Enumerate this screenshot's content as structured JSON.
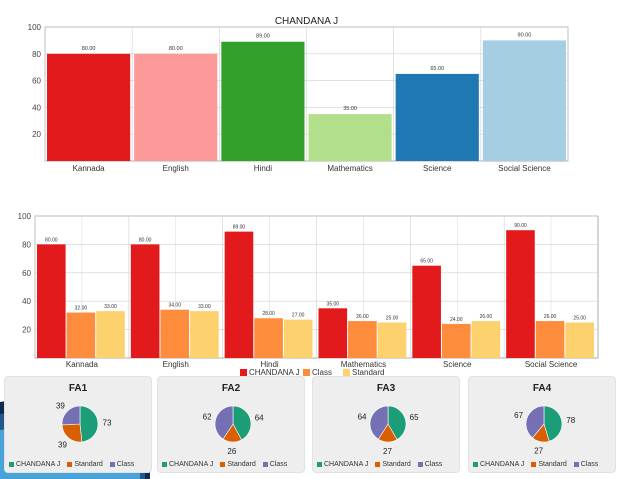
{
  "colors": {
    "red": "#e31a1c",
    "class_orange": "#fd8d3c",
    "standard_yellow": "#fdd26e",
    "pie_green": "#1b9e77",
    "pie_orange": "#d95f02",
    "pie_purple": "#7570b3",
    "grid": "#d0d0d0",
    "card": "#eeeeee"
  },
  "chart_data": [
    {
      "type": "bar",
      "title": "CHANDANA J",
      "categories": [
        "Kannada",
        "English",
        "Hindi",
        "Mathematics",
        "Science",
        "Social Science"
      ],
      "values": [
        80,
        80,
        89,
        35,
        65,
        90
      ],
      "value_labels": [
        "80.00",
        "80.00",
        "89.00",
        "35.00",
        "65.00",
        "90.00"
      ],
      "bar_colors": [
        "#e31a1c",
        "#fb9a99",
        "#33a02c",
        "#b2df8a",
        "#1f78b4",
        "#a6cee3"
      ],
      "yticks": [
        20,
        40,
        60,
        80,
        100
      ],
      "ylim": [
        0,
        100
      ],
      "grid": true
    },
    {
      "type": "bar",
      "categories": [
        "Kannada",
        "English",
        "Hindi",
        "Mathematics",
        "Science",
        "Social Science"
      ],
      "series": [
        {
          "name": "CHANDANA J",
          "values": [
            80,
            80,
            89,
            35,
            65,
            90
          ],
          "labels": [
            "80.00",
            "80.00",
            "89.00",
            "35.00",
            "65.00",
            "90.00"
          ]
        },
        {
          "name": "Class",
          "values": [
            32,
            34,
            28,
            26,
            24,
            26
          ],
          "labels": [
            "32.00",
            "34.00",
            "28.00",
            "26.00",
            "24.00",
            "26.00"
          ]
        },
        {
          "name": "Standard",
          "values": [
            33,
            33,
            27,
            25,
            26,
            25
          ],
          "labels": [
            "33.00",
            "33.00",
            "27.00",
            "25.00",
            "26.00",
            "25.00"
          ]
        }
      ],
      "yticks": [
        20,
        40,
        60,
        80,
        100
      ],
      "ylim": [
        0,
        100
      ],
      "grid": true,
      "legend": "bottom"
    },
    {
      "type": "pie",
      "title": "FA1",
      "slices": [
        {
          "name": "CHANDANA J",
          "value": 73
        },
        {
          "name": "Standard",
          "value": 39
        },
        {
          "name": "Class",
          "value": 39
        }
      ]
    },
    {
      "type": "pie",
      "title": "FA2",
      "slices": [
        {
          "name": "CHANDANA J",
          "value": 64
        },
        {
          "name": "Standard",
          "value": 26
        },
        {
          "name": "Class",
          "value": 62
        }
      ]
    },
    {
      "type": "pie",
      "title": "FA3",
      "slices": [
        {
          "name": "CHANDANA J",
          "value": 65
        },
        {
          "name": "Standard",
          "value": 27
        },
        {
          "name": "Class",
          "value": 64
        }
      ]
    },
    {
      "type": "pie",
      "title": "FA4",
      "slices": [
        {
          "name": "CHANDANA J",
          "value": 78
        },
        {
          "name": "Standard",
          "value": 27
        },
        {
          "name": "Class",
          "value": 67
        }
      ]
    }
  ]
}
